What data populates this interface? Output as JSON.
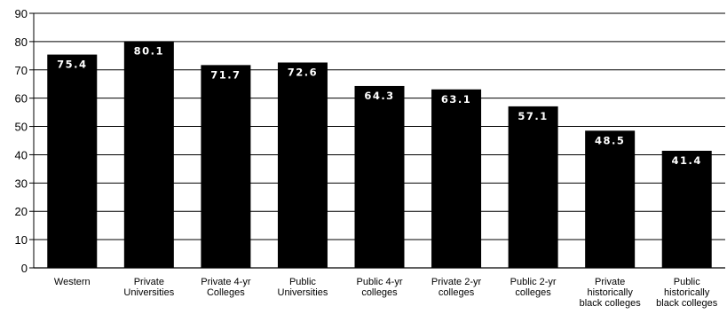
{
  "chart_data": {
    "type": "bar",
    "title": "",
    "xlabel": "",
    "ylabel": "",
    "ylim": [
      0,
      90
    ],
    "yticks": [
      "0",
      "10",
      "20",
      "30",
      "40",
      "50",
      "60",
      "70",
      "80",
      "90"
    ],
    "grid": true,
    "categories": [
      [
        "Western"
      ],
      [
        "Private",
        "Universities"
      ],
      [
        "Private 4-yr",
        "Colleges"
      ],
      [
        "Public",
        "Universities"
      ],
      [
        "Public 4-yr",
        "colleges"
      ],
      [
        "Private 2-yr",
        "colleges"
      ],
      [
        "Public 2-yr",
        "colleges"
      ],
      [
        "Private",
        "historically",
        "black colleges"
      ],
      [
        "Public",
        "historically",
        "black colleges"
      ]
    ],
    "values": [
      75.4,
      80.1,
      71.7,
      72.6,
      64.3,
      63.1,
      57.1,
      48.5,
      41.4
    ],
    "value_labels": [
      "75.4",
      "80.1",
      "71.7",
      "72.6",
      "64.3",
      "63.1",
      "57.1",
      "48.5",
      "41.4"
    ],
    "bar_color": "#000000",
    "label_color": "#ffffff"
  }
}
